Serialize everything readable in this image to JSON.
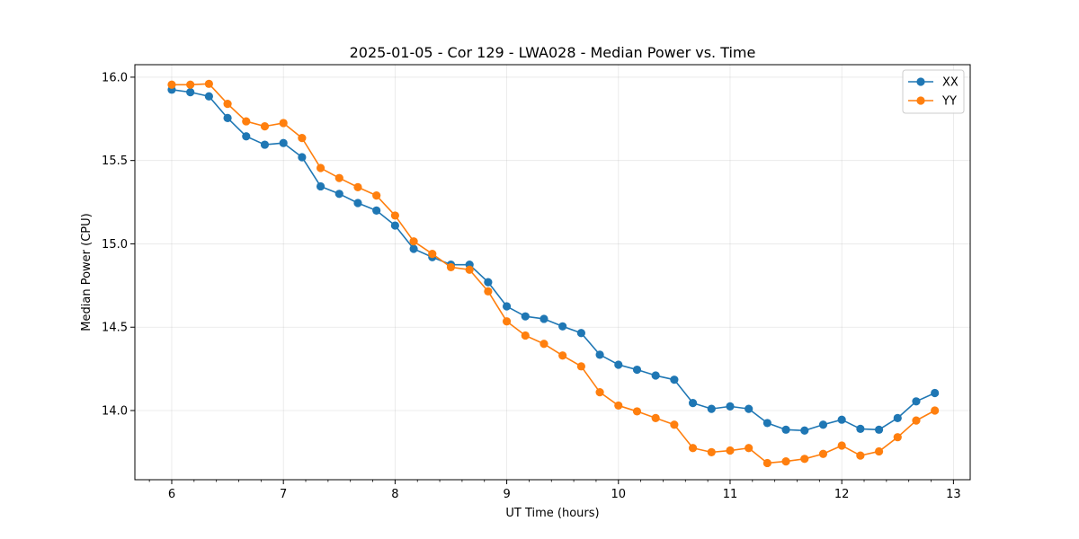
{
  "chart_data": {
    "type": "line",
    "title": "2025-01-05 - Cor 129 - LWA028 - Median Power vs. Time",
    "xlabel": "UT Time (hours)",
    "ylabel": "Median Power (CPU)",
    "xlim": [
      5.67,
      13.15
    ],
    "ylim": [
      13.585,
      16.075
    ],
    "xticks": [
      6,
      7,
      8,
      9,
      10,
      11,
      12,
      13
    ],
    "xtick_labels": [
      "6",
      "7",
      "8",
      "9",
      "10",
      "11",
      "12",
      "13"
    ],
    "x_minor_step": 0.2,
    "yticks": [
      14.0,
      14.5,
      15.0,
      15.5,
      16.0
    ],
    "ytick_labels": [
      "14.0",
      "14.5",
      "15.0",
      "15.5",
      "16.0"
    ],
    "grid": true,
    "legend_position": "top-right",
    "x": [
      6.0,
      6.1667,
      6.3333,
      6.5,
      6.6667,
      6.8333,
      7.0,
      7.1667,
      7.3333,
      7.5,
      7.6667,
      7.8333,
      8.0,
      8.1667,
      8.3333,
      8.5,
      8.6667,
      8.8333,
      9.0,
      9.1667,
      9.3333,
      9.5,
      9.6667,
      9.8333,
      10.0,
      10.1667,
      10.3333,
      10.5,
      10.6667,
      10.8333,
      11.0,
      11.1667,
      11.3333,
      11.5,
      11.6667,
      11.8333,
      12.0,
      12.1667,
      12.3333,
      12.5,
      12.6667,
      12.8333
    ],
    "series": [
      {
        "name": "XX",
        "color": "#1f77b4",
        "values": [
          15.925,
          15.91,
          15.885,
          15.755,
          15.645,
          15.595,
          15.605,
          15.52,
          15.345,
          15.3,
          15.245,
          15.2,
          15.11,
          14.97,
          14.92,
          14.875,
          14.875,
          14.77,
          14.625,
          14.565,
          14.55,
          14.505,
          14.465,
          14.335,
          14.275,
          14.245,
          14.21,
          14.185,
          14.045,
          14.01,
          14.025,
          14.01,
          13.925,
          13.885,
          13.88,
          13.915,
          13.945,
          13.89,
          13.885,
          13.955,
          14.055,
          14.105
        ]
      },
      {
        "name": "YY",
        "color": "#ff7f0e",
        "values": [
          15.955,
          15.955,
          15.96,
          15.84,
          15.735,
          15.705,
          15.725,
          15.635,
          15.455,
          15.395,
          15.34,
          15.29,
          15.17,
          15.015,
          14.94,
          14.86,
          14.845,
          14.715,
          14.535,
          14.45,
          14.4,
          14.33,
          14.265,
          14.11,
          14.03,
          13.995,
          13.955,
          13.915,
          13.775,
          13.75,
          13.76,
          13.775,
          13.685,
          13.695,
          13.71,
          13.74,
          13.79,
          13.73,
          13.755,
          13.84,
          13.94,
          14.0
        ]
      }
    ]
  }
}
